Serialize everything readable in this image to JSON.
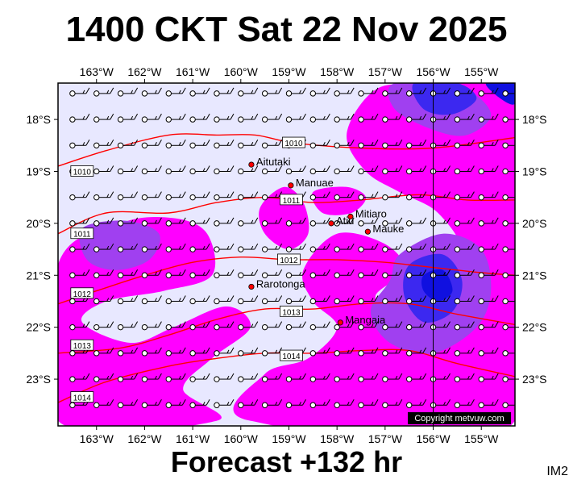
{
  "title": "1400 CKT Sat 22 Nov 2025",
  "footer": "Forecast +132 hr",
  "code": "IM2",
  "copyright": "Copyright metvuw.com",
  "colors": {
    "background": "#e8e8ff",
    "rain_light": "#ff00ff",
    "rain_medium": "#a040f0",
    "rain_heavy": "#3c28f0",
    "rain_extreme": "#1010e0",
    "isobar": "#ff0000",
    "location": "#ff0000"
  },
  "map": {
    "lon_min": -163.8,
    "lon_max": -154.3,
    "lat_min": -23.9,
    "lat_max": -17.3,
    "lon_ticks": [
      {
        "value": -163,
        "label": "163°W"
      },
      {
        "value": -162,
        "label": "162°W"
      },
      {
        "value": -161,
        "label": "161°W"
      },
      {
        "value": -160,
        "label": "160°W"
      },
      {
        "value": -159,
        "label": "159°W"
      },
      {
        "value": -158,
        "label": "158°W"
      },
      {
        "value": -157,
        "label": "157°W"
      },
      {
        "value": -156,
        "label": "156°W"
      },
      {
        "value": -155,
        "label": "155°W"
      }
    ],
    "lat_ticks": [
      {
        "value": -18,
        "label": "18°S"
      },
      {
        "value": -19,
        "label": "19°S"
      },
      {
        "value": -20,
        "label": "20°S"
      },
      {
        "value": -21,
        "label": "21°S"
      },
      {
        "value": -22,
        "label": "22°S"
      },
      {
        "value": -23,
        "label": "23°S"
      }
    ],
    "meridian": -156
  },
  "places": [
    {
      "name": "Aitutaki",
      "lon": -159.78,
      "lat": -18.87
    },
    {
      "name": "Manuae",
      "lon": -158.96,
      "lat": -19.27
    },
    {
      "name": "Atiu",
      "lon": -158.12,
      "lat": -20.0
    },
    {
      "name": "Mitiaro",
      "lon": -157.72,
      "lat": -19.87
    },
    {
      "name": "Mauke",
      "lon": -157.36,
      "lat": -20.16
    },
    {
      "name": "Rarotonga",
      "lon": -159.78,
      "lat": -21.22
    },
    {
      "name": "Mangaia",
      "lon": -157.93,
      "lat": -21.91
    }
  ],
  "isobars": [
    {
      "label": "1010",
      "points": [
        [
          -163.8,
          -18.9
        ],
        [
          -162.8,
          -18.6
        ],
        [
          -161.5,
          -18.3
        ],
        [
          -160.5,
          -18.3
        ],
        [
          -159.7,
          -18.3
        ],
        [
          -158.9,
          -18.45
        ],
        [
          -157.5,
          -18.55
        ],
        [
          -156.0,
          -18.55
        ],
        [
          -154.3,
          -18.35
        ]
      ],
      "labels": [
        {
          "text": "1010",
          "lon": -163.3,
          "lat": -19.0
        },
        {
          "text": "1010",
          "lon": -158.9,
          "lat": -18.45
        }
      ]
    },
    {
      "label": "1011",
      "points": [
        [
          -163.8,
          -20.2
        ],
        [
          -162.8,
          -19.8
        ],
        [
          -161.5,
          -19.8
        ],
        [
          -160.5,
          -19.6
        ],
        [
          -159.5,
          -19.5
        ],
        [
          -158.5,
          -19.6
        ],
        [
          -157.5,
          -19.55
        ],
        [
          -156.3,
          -19.45
        ],
        [
          -155.3,
          -19.55
        ],
        [
          -154.3,
          -19.55
        ]
      ],
      "labels": [
        {
          "text": "1011",
          "lon": -163.3,
          "lat": -20.2
        },
        {
          "text": "1011",
          "lon": -158.95,
          "lat": -19.55
        }
      ]
    },
    {
      "label": "1012",
      "points": [
        [
          -163.8,
          -21.55
        ],
        [
          -163.0,
          -21.3
        ],
        [
          -162.0,
          -21.0
        ],
        [
          -161.0,
          -20.75
        ],
        [
          -160.0,
          -20.65
        ],
        [
          -159.0,
          -20.7
        ],
        [
          -158.0,
          -20.7
        ],
        [
          -157.0,
          -20.75
        ],
        [
          -156.0,
          -20.85
        ],
        [
          -155.0,
          -20.95
        ],
        [
          -154.3,
          -21.0
        ]
      ],
      "labels": [
        {
          "text": "1012",
          "lon": -163.3,
          "lat": -21.35
        },
        {
          "text": "1012",
          "lon": -159.0,
          "lat": -20.7
        }
      ]
    },
    {
      "label": "1013",
      "points": [
        [
          -163.8,
          -22.5
        ],
        [
          -162.5,
          -22.4
        ],
        [
          -161.5,
          -22.15
        ],
        [
          -160.5,
          -21.85
        ],
        [
          -159.5,
          -21.65
        ],
        [
          -158.5,
          -21.65
        ],
        [
          -157.5,
          -21.55
        ],
        [
          -156.5,
          -21.55
        ],
        [
          -155.5,
          -21.75
        ],
        [
          -154.3,
          -21.95
        ]
      ],
      "labels": [
        {
          "text": "1013",
          "lon": -163.3,
          "lat": -22.35
        },
        {
          "text": "1013",
          "lon": -158.95,
          "lat": -21.7
        }
      ]
    },
    {
      "label": "1014",
      "points": [
        [
          -163.8,
          -23.45
        ],
        [
          -162.8,
          -23.05
        ],
        [
          -161.5,
          -22.75
        ],
        [
          -160.5,
          -22.6
        ],
        [
          -159.5,
          -22.5
        ],
        [
          -158.5,
          -22.5
        ],
        [
          -157.5,
          -22.45
        ],
        [
          -156.5,
          -22.45
        ],
        [
          -155.5,
          -22.7
        ],
        [
          -154.3,
          -22.95
        ]
      ],
      "labels": [
        {
          "text": "1014",
          "lon": -163.3,
          "lat": -23.35
        },
        {
          "text": "1014",
          "lon": -158.95,
          "lat": -22.55
        }
      ]
    }
  ],
  "rain_areas": [
    {
      "level": "light",
      "points": [
        [
          -163.8,
          -20.8
        ],
        [
          -162.5,
          -20.0
        ],
        [
          -161.4,
          -19.9
        ],
        [
          -160.7,
          -20.2
        ],
        [
          -160.6,
          -21.0
        ],
        [
          -161.6,
          -21.3
        ],
        [
          -162.8,
          -21.5
        ],
        [
          -163.3,
          -21.9
        ],
        [
          -162.3,
          -22.3
        ],
        [
          -161.4,
          -22.0
        ],
        [
          -160.3,
          -21.6
        ],
        [
          -159.8,
          -22.0
        ],
        [
          -160.6,
          -22.6
        ],
        [
          -161.2,
          -23.2
        ],
        [
          -160.5,
          -23.8
        ],
        [
          -163.8,
          -23.8
        ]
      ]
    },
    {
      "level": "light",
      "points": [
        [
          -159.8,
          -23.8
        ],
        [
          -159.5,
          -22.9
        ],
        [
          -158.6,
          -22.6
        ],
        [
          -158.0,
          -22.0
        ],
        [
          -158.5,
          -21.5
        ],
        [
          -158.7,
          -20.9
        ],
        [
          -158.0,
          -20.2
        ],
        [
          -157.0,
          -20.4
        ],
        [
          -156.6,
          -20.9
        ],
        [
          -157.2,
          -21.4
        ],
        [
          -156.8,
          -21.8
        ],
        [
          -156.1,
          -21.3
        ],
        [
          -155.4,
          -20.6
        ],
        [
          -155.9,
          -19.8
        ],
        [
          -156.7,
          -19.4
        ],
        [
          -157.4,
          -19.0
        ],
        [
          -157.8,
          -18.3
        ],
        [
          -157.3,
          -17.5
        ],
        [
          -156.5,
          -17.3
        ],
        [
          -154.3,
          -17.3
        ],
        [
          -154.3,
          -23.8
        ]
      ]
    },
    {
      "level": "light",
      "points": [
        [
          -159.6,
          -19.7
        ],
        [
          -159.1,
          -19.3
        ],
        [
          -158.7,
          -19.6
        ],
        [
          -158.6,
          -20.2
        ],
        [
          -159.0,
          -20.5
        ],
        [
          -159.5,
          -20.2
        ]
      ]
    },
    {
      "level": "light",
      "points": [
        [
          -158.5,
          -19.4
        ],
        [
          -157.8,
          -19.3
        ],
        [
          -157.4,
          -19.5
        ],
        [
          -157.7,
          -19.8
        ],
        [
          -158.3,
          -19.8
        ]
      ]
    },
    {
      "level": "medium",
      "points": [
        [
          -163.3,
          -20.1
        ],
        [
          -162.4,
          -19.95
        ],
        [
          -161.7,
          -20.2
        ],
        [
          -161.9,
          -20.7
        ],
        [
          -162.6,
          -20.9
        ],
        [
          -163.2,
          -20.7
        ]
      ]
    },
    {
      "level": "medium",
      "points": [
        [
          -156.8,
          -17.3
        ],
        [
          -155.4,
          -17.4
        ],
        [
          -154.8,
          -17.9
        ],
        [
          -155.3,
          -18.3
        ],
        [
          -156.0,
          -18.2
        ],
        [
          -156.8,
          -17.8
        ]
      ]
    },
    {
      "level": "medium",
      "points": [
        [
          -156.7,
          -20.6
        ],
        [
          -155.8,
          -20.2
        ],
        [
          -155.0,
          -20.5
        ],
        [
          -154.8,
          -21.3
        ],
        [
          -155.1,
          -22.0
        ],
        [
          -156.0,
          -22.5
        ],
        [
          -156.9,
          -22.3
        ],
        [
          -157.3,
          -21.7
        ],
        [
          -156.9,
          -21.1
        ]
      ]
    },
    {
      "level": "heavy",
      "points": [
        [
          -156.4,
          -17.3
        ],
        [
          -155.5,
          -17.3
        ],
        [
          -155.1,
          -17.6
        ],
        [
          -155.6,
          -17.9
        ],
        [
          -156.2,
          -17.8
        ]
      ]
    },
    {
      "level": "heavy",
      "points": [
        [
          -156.5,
          -20.8
        ],
        [
          -155.8,
          -20.6
        ],
        [
          -155.4,
          -21.1
        ],
        [
          -155.6,
          -21.7
        ],
        [
          -156.2,
          -21.9
        ],
        [
          -156.6,
          -21.4
        ]
      ]
    },
    {
      "level": "extreme",
      "points": [
        [
          -154.9,
          -17.3
        ],
        [
          -154.3,
          -17.3
        ],
        [
          -154.3,
          -17.7
        ],
        [
          -154.6,
          -17.6
        ]
      ]
    },
    {
      "level": "extreme",
      "points": [
        [
          -156.2,
          -21.0
        ],
        [
          -155.8,
          -20.9
        ],
        [
          -155.6,
          -21.3
        ],
        [
          -155.9,
          -21.5
        ],
        [
          -156.2,
          -21.3
        ]
      ]
    }
  ],
  "wind": {
    "lon_start": -163.5,
    "lon_step": 0.5,
    "lat_start": -17.5,
    "lat_step": -0.5,
    "cols": 19,
    "rows": 13
  }
}
